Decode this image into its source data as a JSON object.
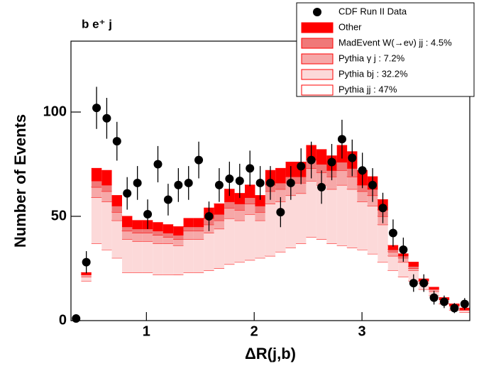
{
  "chart_data": {
    "type": "histogram",
    "stacked": true,
    "title": "b e⁺ j",
    "x_label": "ΔR(j,b)",
    "y_label": "Number of Events",
    "xlim": [
      0.3,
      4.0
    ],
    "ylim": [
      0,
      134
    ],
    "xticks": [
      1,
      2,
      3
    ],
    "yticks": [
      0,
      50,
      100
    ],
    "edge_color": "#ff0000",
    "bins": [
      0.3,
      0.395,
      0.49,
      0.585,
      0.679,
      0.774,
      0.869,
      0.964,
      1.059,
      1.154,
      1.249,
      1.344,
      1.438,
      1.533,
      1.628,
      1.723,
      1.818,
      1.913,
      2.008,
      2.103,
      2.197,
      2.292,
      2.387,
      2.482,
      2.577,
      2.672,
      2.767,
      2.862,
      2.956,
      3.051,
      3.146,
      3.241,
      3.336,
      3.431,
      3.526,
      3.621,
      3.715,
      3.81,
      3.905,
      4.0
    ],
    "data_points": {
      "name": "CDF Run II Data",
      "color": "#000000",
      "values": [
        1,
        28,
        102,
        97,
        86,
        61,
        66,
        51,
        75,
        58,
        65,
        66,
        77,
        50,
        65,
        68,
        67,
        73,
        66,
        66,
        52,
        66,
        74,
        77,
        64,
        76,
        87,
        78,
        72,
        65,
        54,
        42,
        34,
        18,
        18,
        11,
        9,
        6,
        8
      ],
      "errors": [
        1,
        5.3,
        10.1,
        9.8,
        9.3,
        7.8,
        8.1,
        7.1,
        8.7,
        7.6,
        8.1,
        8.1,
        8.8,
        7.1,
        8.1,
        8.2,
        8.2,
        8.5,
        8.1,
        8.1,
        7.2,
        8.1,
        8.6,
        8.8,
        8,
        8.7,
        9.3,
        8.8,
        8.5,
        8.1,
        7.3,
        6.5,
        5.8,
        4.2,
        4.2,
        3.3,
        3,
        2.4,
        2.8
      ]
    },
    "series": [
      {
        "name": "Other",
        "color": "#ff0000",
        "values": [
          0,
          1,
          6,
          7,
          5,
          5,
          4,
          4,
          4,
          4,
          4,
          4,
          4,
          5,
          5,
          6,
          5,
          6,
          5,
          7,
          7,
          7,
          7,
          7,
          7,
          7,
          8,
          8,
          7,
          6,
          5,
          2,
          1,
          2,
          1,
          1,
          1,
          1,
          1
        ]
      },
      {
        "name": "MadEvent W(→eν) jj : 4.5%",
        "color": "#f07878",
        "values": [
          0,
          0,
          3,
          3,
          3,
          2,
          2,
          2,
          2,
          2,
          2,
          2,
          2,
          3,
          3,
          3,
          3,
          3,
          3,
          3,
          3,
          3,
          3,
          4,
          4,
          3,
          4,
          4,
          3,
          3,
          3,
          1,
          1,
          1,
          0,
          0,
          0,
          0,
          0
        ]
      },
      {
        "name": "Pythia γ j : 7.2%",
        "color": "#f6a8a8",
        "values": [
          0,
          1,
          5,
          5,
          4,
          4,
          4,
          4,
          4,
          3,
          3,
          4,
          4,
          4,
          4,
          5,
          5,
          5,
          4,
          6,
          6,
          6,
          5,
          6,
          6,
          6,
          7,
          6,
          5,
          5,
          4,
          2,
          2,
          1,
          1,
          1,
          0,
          0,
          0
        ]
      },
      {
        "name": "Pythia bj : 32.2%",
        "color": "#fcd9d9",
        "values": [
          0,
          2,
          22,
          23,
          18,
          16,
          15,
          15,
          15,
          15,
          14,
          16,
          16,
          18,
          19,
          22,
          20,
          22,
          18,
          25,
          24,
          25,
          24,
          27,
          26,
          26,
          29,
          28,
          23,
          23,
          18,
          7,
          7,
          5,
          3,
          2,
          2,
          2,
          1
        ]
      },
      {
        "name": "Pythia jj : 47%",
        "color": "#ffffff",
        "values": [
          0,
          19,
          37,
          34,
          30,
          23,
          23,
          23,
          22,
          22,
          22,
          23,
          23,
          24,
          25,
          27,
          28,
          29,
          30,
          31,
          33,
          35,
          37,
          40,
          39,
          37,
          36,
          35,
          34,
          32,
          28,
          24,
          21,
          19,
          15,
          12,
          8,
          5,
          4
        ]
      }
    ]
  }
}
